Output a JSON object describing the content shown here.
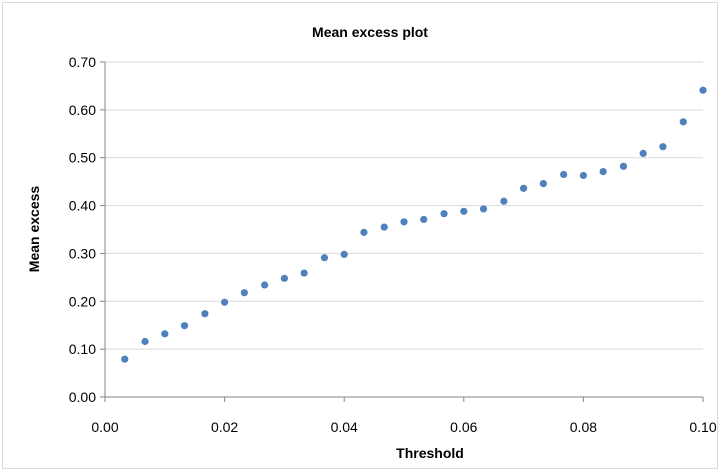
{
  "chart_data": {
    "type": "scatter",
    "title": "Mean excess plot",
    "xlabel": "Threshold",
    "ylabel": "Mean excess",
    "xlim": [
      0.0,
      0.1
    ],
    "ylim": [
      0.0,
      0.7
    ],
    "x_ticks": [
      "0.00",
      "0.02",
      "0.04",
      "0.06",
      "0.08",
      "0.10"
    ],
    "y_ticks": [
      "0.00",
      "0.10",
      "0.20",
      "0.30",
      "0.40",
      "0.50",
      "0.60",
      "0.70"
    ],
    "grid": "horizontal",
    "legend": "none",
    "marker_color": "#4f81bd",
    "series": [
      {
        "x": [
          0.0033,
          0.0067,
          0.01,
          0.0133,
          0.0167,
          0.02,
          0.0233,
          0.0267,
          0.03,
          0.0333,
          0.0367,
          0.04,
          0.0433,
          0.0467,
          0.05,
          0.0533,
          0.0567,
          0.06,
          0.0633,
          0.0667,
          0.07,
          0.0733,
          0.0767,
          0.08,
          0.0833,
          0.0867,
          0.09,
          0.0933,
          0.0967,
          0.1
        ],
        "y": [
          0.079,
          0.116,
          0.132,
          0.149,
          0.174,
          0.198,
          0.218,
          0.234,
          0.248,
          0.259,
          0.291,
          0.298,
          0.344,
          0.355,
          0.366,
          0.371,
          0.383,
          0.388,
          0.393,
          0.409,
          0.436,
          0.446,
          0.465,
          0.463,
          0.471,
          0.482,
          0.509,
          0.523,
          0.575,
          0.641
        ]
      }
    ]
  }
}
